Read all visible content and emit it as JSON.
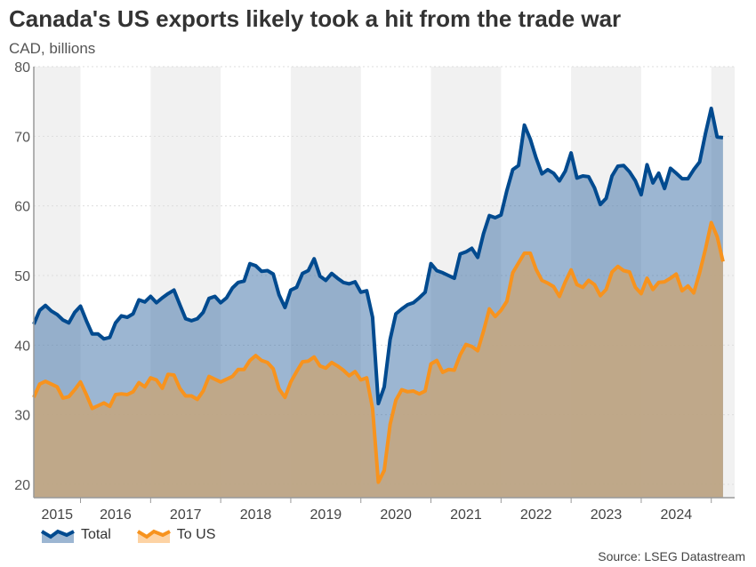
{
  "chart_data": {
    "type": "area",
    "title": "Canada's US exports likely took a hit from the trade war",
    "subtitle": "CAD, billions",
    "source": "Source: LSEG Datastream",
    "x_start": "2015-05",
    "x_frequency": "monthly",
    "xlim": [
      "2015-05",
      "2025-05"
    ],
    "ylim": [
      18,
      80
    ],
    "yticks": [
      20,
      30,
      40,
      50,
      60,
      70,
      80
    ],
    "xtick_labels": [
      "2015",
      "2016",
      "2017",
      "2018",
      "2019",
      "2020",
      "2021",
      "2022",
      "2023",
      "2024"
    ],
    "grid": "horizontal dotted",
    "alternating_year_shading": true,
    "legend_position": "bottom-left",
    "colors": {
      "total_line": "#004a8f",
      "total_fill": "#3a6ea5",
      "us_line": "#f7931e",
      "us_fill": "#c2a783",
      "band": "#f1f1f1"
    },
    "series": [
      {
        "name": "Total",
        "values": [
          43.0,
          45.0,
          45.7,
          44.9,
          44.4,
          43.6,
          43.2,
          44.7,
          45.6,
          43.5,
          41.6,
          41.6,
          40.9,
          41.1,
          43.2,
          44.2,
          44.0,
          44.5,
          46.5,
          46.2,
          47.0,
          46.1,
          46.8,
          47.4,
          47.9,
          45.8,
          43.8,
          43.5,
          43.8,
          44.7,
          46.7,
          47.0,
          46.1,
          46.8,
          48.2,
          49.0,
          49.2,
          51.7,
          51.4,
          50.6,
          50.7,
          50.2,
          47.2,
          45.4,
          47.9,
          48.3,
          50.3,
          50.7,
          52.4,
          49.9,
          49.3,
          50.3,
          49.6,
          49.0,
          48.8,
          49.1,
          47.6,
          47.8,
          44.0,
          31.6,
          34.0,
          40.8,
          44.5,
          45.2,
          45.8,
          46.1,
          46.8,
          47.6,
          51.7,
          50.7,
          50.4,
          50.0,
          49.6,
          53.1,
          53.4,
          53.9,
          52.6,
          56.0,
          58.6,
          58.3,
          58.7,
          62.2,
          65.2,
          65.8,
          71.6,
          69.6,
          66.9,
          64.6,
          65.2,
          64.7,
          63.6,
          65.0,
          67.6,
          64.0,
          64.3,
          64.2,
          62.6,
          60.2,
          61.1,
          64.3,
          65.7,
          65.8,
          64.9,
          63.6,
          61.6,
          65.9,
          63.3,
          64.7,
          62.5,
          65.4,
          64.7,
          63.9,
          63.9,
          65.2,
          66.3,
          70.4,
          74.0,
          69.9,
          69.8
        ]
      },
      {
        "name": "To US",
        "values": [
          32.5,
          34.4,
          34.8,
          34.4,
          34.0,
          32.4,
          32.6,
          33.6,
          34.7,
          32.9,
          30.9,
          31.3,
          31.7,
          31.2,
          32.9,
          33.0,
          32.9,
          33.3,
          34.6,
          34.0,
          35.3,
          35.0,
          33.8,
          35.8,
          35.7,
          33.8,
          32.7,
          32.7,
          32.2,
          33.4,
          35.5,
          35.1,
          34.7,
          35.1,
          35.5,
          36.5,
          36.5,
          37.8,
          38.5,
          37.8,
          37.5,
          36.6,
          33.7,
          32.5,
          34.7,
          36.2,
          37.6,
          37.7,
          38.3,
          37.0,
          36.7,
          37.5,
          37.0,
          36.4,
          35.6,
          36.2,
          35.0,
          35.3,
          30.9,
          20.3,
          22.0,
          28.6,
          32.1,
          33.6,
          33.3,
          33.4,
          33.0,
          33.4,
          37.3,
          37.8,
          36.1,
          36.5,
          36.4,
          38.6,
          40.1,
          39.8,
          39.2,
          42.0,
          45.2,
          44.1,
          45.0,
          46.3,
          50.4,
          51.8,
          53.2,
          53.2,
          50.9,
          49.3,
          48.9,
          48.4,
          47.0,
          49.1,
          50.8,
          48.7,
          48.3,
          49.3,
          48.7,
          47.1,
          48.0,
          50.5,
          51.3,
          50.7,
          50.5,
          48.3,
          47.4,
          49.6,
          48.0,
          49.0,
          49.1,
          49.6,
          50.2,
          47.8,
          48.5,
          47.5,
          50.4,
          53.8,
          57.6,
          55.6,
          52.0
        ]
      }
    ]
  }
}
